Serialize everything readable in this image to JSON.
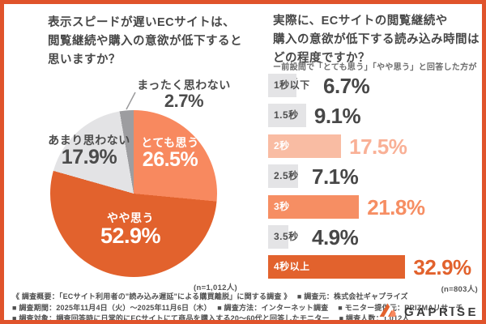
{
  "left_panel": {
    "title": "表示スピードが遅いECサイトは、\n閲覧継続や購入の意欲が低下すると\n思いますか？",
    "sample_note": "(n=1,012人)"
  },
  "right_panel": {
    "title": "実際に、ECサイトの閲覧継続や\n購入の意欲が低下する読み込み時間は\nどの程度ですか？",
    "subtitle": "ー前設問で「とても思う」「やや思う」と回答した方が回答ー",
    "sample_note": "(n=803人)"
  },
  "chart_data": [
    {
      "type": "pie",
      "title": "表示スピードが遅いECサイトは、閲覧継続や購入の意欲が低下すると思いますか？",
      "sample_size": "n=1,012人",
      "start_angle_deg": 0,
      "direction": "clockwise",
      "slices": [
        {
          "label": "とても思う",
          "value": 26.5,
          "display": "26.5%",
          "color": "#F8895F",
          "text_color": "#FFFFFF"
        },
        {
          "label": "やや思う",
          "value": 52.9,
          "display": "52.9%",
          "color": "#E2622D",
          "text_color": "#FFFFFF"
        },
        {
          "label": "あまり思わない",
          "value": 17.9,
          "display": "17.9%",
          "color": "#E3E3E5",
          "text_color": "#4B4B4B"
        },
        {
          "label": "まったく思わない",
          "value": 2.7,
          "display": "2.7%",
          "color": "#9D9DA0",
          "text_color": "#4B4B4B"
        }
      ]
    },
    {
      "type": "bar",
      "orientation": "horizontal",
      "title": "実際に、ECサイトの閲覧継続や購入の意欲が低下する読み込み時間はどの程度ですか？",
      "sample_size": "n=803人",
      "unit": "%",
      "xlim": [
        0,
        35
      ],
      "categories": [
        "1秒以下",
        "1.5秒",
        "2秒",
        "2.5秒",
        "3秒",
        "3.5秒",
        "4秒以上"
      ],
      "values": [
        6.7,
        9.1,
        17.5,
        7.1,
        21.8,
        4.9,
        32.9
      ],
      "display": [
        "6.7%",
        "9.1%",
        "17.5%",
        "7.1%",
        "21.8%",
        "4.9%",
        "32.9%"
      ],
      "bar_colors": [
        "#E4E4E6",
        "#E4E4E6",
        "#F9BCA3",
        "#E4E4E6",
        "#F68E63",
        "#E4E4E6",
        "#E2622D"
      ],
      "label_colors": [
        "#4f4f4f",
        "#4f4f4f",
        "#FFFFFF",
        "#4f4f4f",
        "#FFFFFF",
        "#4f4f4f",
        "#FFFFFF"
      ],
      "value_colors": [
        "#474747",
        "#474747",
        "#F9B096",
        "#474747",
        "#F68E63",
        "#474747",
        "#E2622D"
      ]
    }
  ],
  "footer": {
    "lines": [
      "《 調査概要：「ECサイト利用者の\"読み込み遅延\"による購買離脱」に関する調査 》　 ■ 調査元：株式会社ギャプライズ",
      "■ 調査期間：2025年11月4日（火）〜2025年11月6日（木）　 ■ 調査方法：インターネット調査　 ■ モニター提供元：PRIZMAリサーチ",
      "■ 調査対象：調査回答時に日常的にECサイトにて商品を購入する20〜60代と回答したモニター　 ■ 調査人数：1,012人"
    ],
    "logo_text": "GAPRISE"
  },
  "colors": {
    "frame_border": "#E0532B",
    "accent_dark_orange": "#E2622D",
    "accent_salmon": "#F8895F",
    "accent_light_salmon": "#F9BCA3",
    "neutral_gray": "#E4E4E6",
    "text_dark": "#474747"
  }
}
